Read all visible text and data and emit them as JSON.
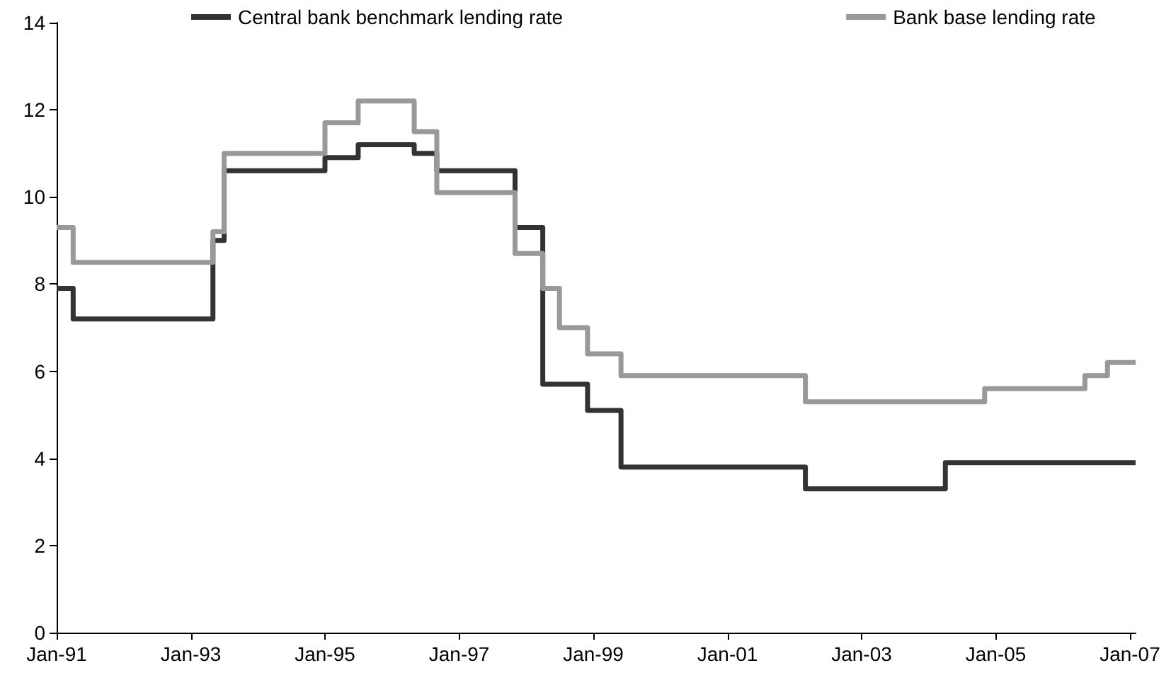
{
  "chart_data": {
    "type": "step",
    "xlim": [
      "1991-01",
      "2007-02"
    ],
    "xticks": [
      {
        "value": "1991-01",
        "label": "Jan-91"
      },
      {
        "value": "1993-01",
        "label": "Jan-93"
      },
      {
        "value": "1995-01",
        "label": "Jan-95"
      },
      {
        "value": "1997-01",
        "label": "Jan-97"
      },
      {
        "value": "1999-01",
        "label": "Jan-99"
      },
      {
        "value": "2001-01",
        "label": "Jan-01"
      },
      {
        "value": "2003-01",
        "label": "Jan-03"
      },
      {
        "value": "2005-01",
        "label": "Jan-05"
      },
      {
        "value": "2007-01",
        "label": "Jan-07"
      }
    ],
    "ylim": [
      0,
      14
    ],
    "yticks": [
      0,
      2,
      4,
      6,
      8,
      10,
      12,
      14
    ],
    "grid": false,
    "legend": "top",
    "marker": "none",
    "line_style": "solid",
    "series": [
      {
        "name": "Central bank benchmark lending rate",
        "color": "#333333",
        "x": [
          "1991-01",
          "1991-04",
          "1993-05",
          "1993-07",
          "1995-01",
          "1995-07",
          "1996-05",
          "1996-09",
          "1997-11",
          "1998-04",
          "1998-12",
          "1999-06",
          "2002-03",
          "2004-04",
          "2007-02"
        ],
        "values": [
          7.9,
          7.2,
          9.0,
          10.6,
          10.9,
          11.2,
          11.0,
          10.6,
          9.3,
          5.7,
          5.1,
          3.8,
          3.3,
          3.9,
          3.9
        ]
      },
      {
        "name": "Bank base lending rate",
        "color": "#999999",
        "x": [
          "1991-01",
          "1991-04",
          "1993-05",
          "1993-07",
          "1995-01",
          "1995-07",
          "1996-05",
          "1996-09",
          "1997-11",
          "1998-04",
          "1998-07",
          "1998-12",
          "1999-06",
          "2002-03",
          "2004-11",
          "2006-05",
          "2006-09",
          "2007-02"
        ],
        "values": [
          9.3,
          8.5,
          9.2,
          11.0,
          11.7,
          12.2,
          11.5,
          10.1,
          8.7,
          7.9,
          7.0,
          6.4,
          5.9,
          5.3,
          5.6,
          5.9,
          6.2,
          6.2
        ]
      }
    ]
  }
}
